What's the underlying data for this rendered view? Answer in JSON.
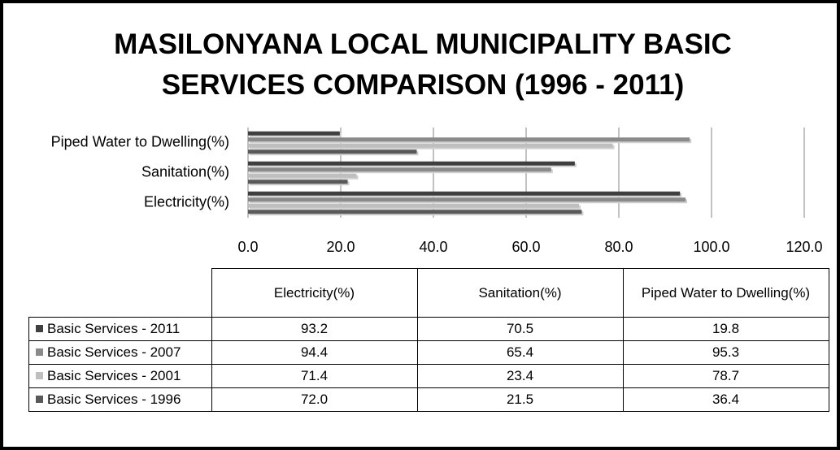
{
  "chart_data": {
    "type": "bar",
    "orientation": "horizontal",
    "title": "MASILONYANA LOCAL MUNICIPALITY BASIC SERVICES COMPARISON (1996 - 2011)",
    "categories": [
      "Electricity(%)",
      "Sanitation(%)",
      "Piped Water to Dwelling(%)"
    ],
    "series": [
      {
        "name": "Basic Services - 2011",
        "color": "#3f3f3f",
        "values": [
          93.2,
          70.5,
          19.8
        ],
        "value_labels": [
          "93.2",
          "70.5",
          "19.8"
        ]
      },
      {
        "name": "Basic Services - 2007",
        "color": "#8a8a8a",
        "values": [
          94.4,
          65.4,
          95.3
        ],
        "value_labels": [
          "94.4",
          "65.4",
          "95.3"
        ]
      },
      {
        "name": "Basic Services - 2001",
        "color": "#bfbfbf",
        "values": [
          71.4,
          23.4,
          78.7
        ],
        "value_labels": [
          "71.4",
          "23.4",
          "78.7"
        ]
      },
      {
        "name": "Basic Services - 1996",
        "color": "#595959",
        "values": [
          72,
          21.5,
          36.4
        ],
        "value_labels": [
          "72.0",
          "21.5",
          "36.4"
        ]
      }
    ],
    "xlim": [
      0,
      120
    ],
    "xticks": [
      {
        "value": 0,
        "label": "0.0"
      },
      {
        "value": 20,
        "label": "20.0"
      },
      {
        "value": 40,
        "label": "40.0"
      },
      {
        "value": 60,
        "label": "60.0"
      },
      {
        "value": 80,
        "label": "80.0"
      },
      {
        "value": 100,
        "label": "100.0"
      },
      {
        "value": 120,
        "label": "120.0"
      }
    ],
    "grid": true,
    "data_table": true
  }
}
